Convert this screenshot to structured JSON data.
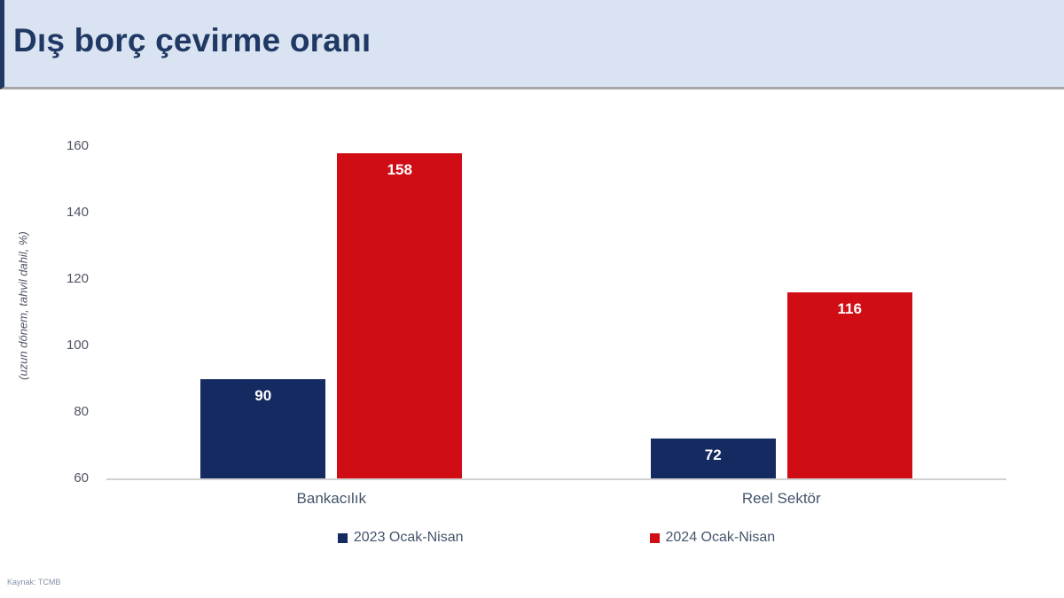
{
  "header": {
    "title": "Dış borç çevirme oranı"
  },
  "source": "Kaynak: TCMB",
  "chart_data": {
    "type": "bar",
    "title": "Dış borç çevirme oranı",
    "categories": [
      "Bankacılık",
      "Reel Sektör"
    ],
    "series": [
      {
        "name": "2023 Ocak-Nisan",
        "color": "#152a60",
        "values": [
          90,
          72
        ]
      },
      {
        "name": "2024 Ocak-Nisan",
        "color": "#d00d15",
        "values": [
          158,
          116
        ]
      }
    ],
    "xlabel": "",
    "ylabel": "(uzun dönem, tahvil dahil, %)",
    "ylim": [
      60,
      160
    ],
    "yticks": [
      60,
      80,
      100,
      120,
      140,
      160
    ],
    "grid": false,
    "legend_position": "bottom",
    "value_labels": "inside-top",
    "value_label_color": "#ffffff"
  }
}
